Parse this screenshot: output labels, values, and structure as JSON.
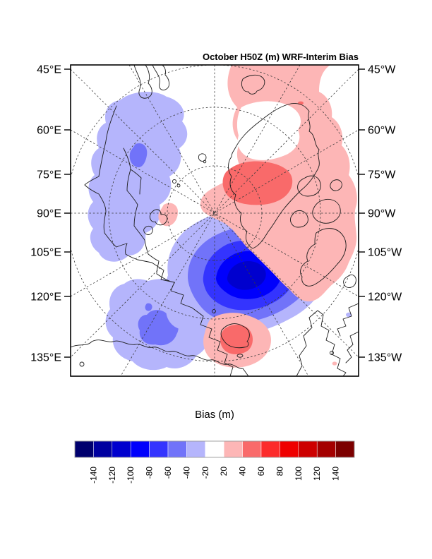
{
  "title": "October H50Z (m) WRF-Interim Bias",
  "left_axis": {
    "labels": [
      "45°E",
      "60°E",
      "75°E",
      "90°E",
      "105°E",
      "120°E",
      "135°E"
    ]
  },
  "right_axis": {
    "labels": [
      "45°W",
      "60°W",
      "75°W",
      "90°W",
      "105°W",
      "120°W",
      "135°W"
    ]
  },
  "colorbar": {
    "title": "Bias (m)",
    "tick_labels": [
      "-140",
      "-120",
      "-100",
      "-80",
      "-60",
      "-40",
      "-20",
      "20",
      "40",
      "60",
      "80",
      "100",
      "120",
      "140"
    ],
    "colors_negative": [
      "#00006E",
      "#0000A0",
      "#0000CE",
      "#0000FC",
      "#3434FE",
      "#7173F9",
      "#B5B5FC"
    ],
    "colors_positive": [
      "#FDB6B6",
      "#F96A6A",
      "#FC2B2B",
      "#EF0000",
      "#CD0000",
      "#A40000",
      "#7C0000"
    ],
    "gap_color": "#FFFFFF"
  },
  "chart_data": {
    "type": "heatmap",
    "subtype": "filled-contour polar stereographic map",
    "title": "October H50Z (m) WRF-Interim Bias",
    "colorbar_title": "Bias (m)",
    "units": "m",
    "projection": "north polar stereographic, pole at map center",
    "contour_levels": [
      -140,
      -120,
      -100,
      -80,
      -60,
      -40,
      -20,
      20,
      40,
      60,
      80,
      100,
      120,
      140
    ],
    "white_range": [
      -20,
      20
    ],
    "longitude_labels_left_edge": [
      "45°E",
      "60°E",
      "75°E",
      "90°E",
      "105°E",
      "120°E",
      "135°E"
    ],
    "longitude_labels_right_edge": [
      "45°W",
      "60°W",
      "75°W",
      "90°W",
      "105°W",
      "120°W",
      "135°W"
    ],
    "graticule": {
      "meridians_deg_spacing": 15,
      "latitude_circles": [
        "80N",
        "70N",
        "60N"
      ],
      "style": "dashed"
    },
    "features": [
      {
        "region": "central Arctic near pole (Barents-Kara sector)",
        "bias_sign": "negative",
        "peak_bias_m": -110,
        "deepest_contour_band": "-100 to -120"
      },
      {
        "region": "eastern Siberia / Chukotka (upper left)",
        "bias_sign": "negative",
        "peak_bias_m": -50,
        "deepest_contour_band": "-40 to -60"
      },
      {
        "region": "northeastern Europe sector (lower left)",
        "bias_sign": "negative",
        "peak_bias_m": -50,
        "deepest_contour_band": "-40 to -60"
      },
      {
        "region": "Greenland (upper right)",
        "bias_sign": "positive",
        "peak_bias_m": 50,
        "deepest_contour_band": "40 to 60"
      },
      {
        "region": "Canadian Arctic Archipelago (right)",
        "bias_sign": "positive",
        "peak_bias_m": 30,
        "deepest_contour_band": "20 to 40"
      },
      {
        "region": "North Sea / UK sector (bottom center)",
        "bias_sign": "positive",
        "peak_bias_m": 50,
        "deepest_contour_band": "40 to 60"
      },
      {
        "region": "small patch near Svalbard",
        "bias_sign": "positive",
        "peak_bias_m": 30,
        "deepest_contour_band": "20 to 40"
      }
    ],
    "legend_position": "horizontal colorbar below map",
    "tick_label_rotation_deg": 90
  }
}
